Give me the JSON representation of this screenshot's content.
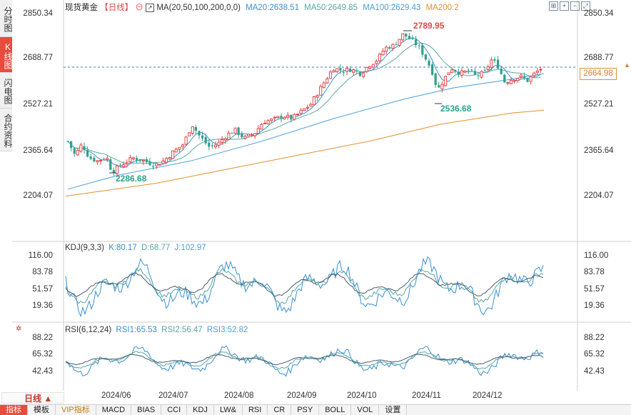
{
  "side_tabs": [
    {
      "label": "分时图",
      "active": false
    },
    {
      "label": "K线图",
      "active": true
    },
    {
      "label": "闪电图",
      "active": false
    },
    {
      "label": "合约资料",
      "active": false
    }
  ],
  "main_panel": {
    "instrument": "现货黄金",
    "period_tag": "【日线】",
    "ma_header": "MA(20,50,100,200,0,0)",
    "ma_values": [
      {
        "label": "MA20:2638.51",
        "color": "#3a8fd0"
      },
      {
        "label": "MA50:2649.85",
        "color": "#5aa8a0"
      },
      {
        "label": "MA100:2629.43",
        "color": "#4a9fd6"
      },
      {
        "label": "MA200:2",
        "color": "#e0902c"
      }
    ],
    "y_ticks": [
      "2850.34",
      "2688.77",
      "2527.21",
      "2365.64",
      "2204.07"
    ],
    "current_price": "2664.98",
    "annotations": {
      "high": "2789.95",
      "low1": "2286.68",
      "low2": "2536.68"
    }
  },
  "kdj_panel": {
    "header": "KDJ(9,3,3)",
    "values": [
      {
        "label": "K:80.17",
        "color": "#3a8fd0"
      },
      {
        "label": "D:68.77",
        "color": "#5aa8a0"
      },
      {
        "label": "J:102.97",
        "color": "#4a9fd6"
      }
    ],
    "y_ticks": [
      "116.00",
      "83.78",
      "51.57",
      "19.36"
    ]
  },
  "rsi_panel": {
    "header": "RSI(6,12,24)",
    "values": [
      {
        "label": "RSI1:65.53",
        "color": "#3a8fd0"
      },
      {
        "label": "RSI2:56.47",
        "color": "#5aa8a0"
      },
      {
        "label": "RSI3:52.82",
        "color": "#4a9fd6"
      }
    ],
    "y_ticks": [
      "88.22",
      "65.32",
      "42.43"
    ]
  },
  "x_axis": [
    "2024/06",
    "2024/07",
    "2024/08",
    "2024/09",
    "2024/10",
    "2024/11",
    "2024/12"
  ],
  "period_button": "日线 ▲",
  "bottom_tabs": [
    {
      "label": "指标",
      "selected": true
    },
    {
      "label": "模板",
      "selected": false
    },
    {
      "label": "VIP指标",
      "selected": false,
      "vip": true
    },
    {
      "label": "MACD",
      "selected": false
    },
    {
      "label": "BIAS",
      "selected": false
    },
    {
      "label": "CCI",
      "selected": false
    },
    {
      "label": "KDJ",
      "selected": false
    },
    {
      "label": "LW&",
      "selected": false
    },
    {
      "label": "RSI",
      "selected": false
    },
    {
      "label": "CR",
      "selected": false
    },
    {
      "label": "PSY",
      "selected": false
    },
    {
      "label": "BOLL",
      "selected": false
    },
    {
      "label": "VOL",
      "selected": false
    },
    {
      "label": "设置",
      "selected": false
    }
  ],
  "colors": {
    "up": "#e04848",
    "down": "#2fa08a",
    "ma20": "#3a8fd0",
    "ma50": "#5aa8a0",
    "ma100": "#4a9fd6",
    "ma200": "#e0902c",
    "annot_high": "#e04848",
    "annot_low": "#2fa08a"
  }
}
